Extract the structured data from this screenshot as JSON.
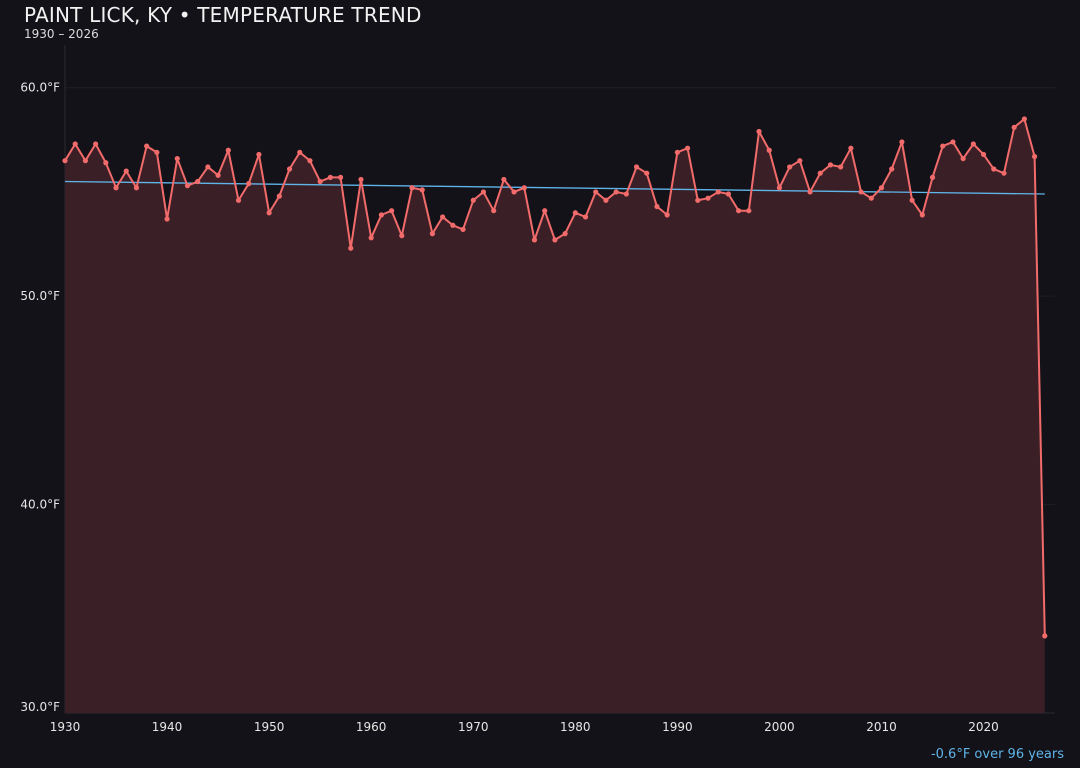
{
  "chart_data": {
    "type": "line",
    "title": "PAINT LICK, KY • TEMPERATURE TREND",
    "subtitle": "1930 – 2026",
    "xlabel": "",
    "ylabel": "",
    "xlim": [
      1930,
      2027
    ],
    "ylim": [
      30,
      62.05
    ],
    "x_ticks": [
      1930,
      1940,
      1950,
      1960,
      1970,
      1980,
      1990,
      2000,
      2010,
      2020
    ],
    "y_ticks": [
      30,
      40,
      50,
      60
    ],
    "y_tick_labels": [
      "30.0°F",
      "40.0°F",
      "50.0°F",
      "60.0°F"
    ],
    "grid": true,
    "colors": {
      "line": "#f26b6b",
      "fill": "#3a2026",
      "trend": "#5fb4e8",
      "background": "#131218"
    },
    "x": [
      1930,
      1931,
      1932,
      1933,
      1934,
      1935,
      1936,
      1937,
      1938,
      1939,
      1940,
      1941,
      1942,
      1943,
      1944,
      1945,
      1946,
      1947,
      1948,
      1949,
      1950,
      1951,
      1952,
      1953,
      1954,
      1955,
      1956,
      1957,
      1958,
      1959,
      1960,
      1961,
      1962,
      1963,
      1964,
      1965,
      1966,
      1967,
      1968,
      1969,
      1970,
      1971,
      1972,
      1973,
      1974,
      1975,
      1976,
      1977,
      1978,
      1979,
      1980,
      1981,
      1982,
      1983,
      1984,
      1985,
      1986,
      1987,
      1988,
      1989,
      1990,
      1991,
      1992,
      1993,
      1994,
      1995,
      1996,
      1997,
      1998,
      1999,
      2000,
      2001,
      2002,
      2003,
      2004,
      2005,
      2006,
      2007,
      2008,
      2009,
      2010,
      2011,
      2012,
      2013,
      2014,
      2015,
      2016,
      2017,
      2018,
      2019,
      2020,
      2021,
      2022,
      2023,
      2024,
      2025,
      2026
    ],
    "values": [
      56.5,
      57.3,
      56.5,
      57.3,
      56.4,
      55.2,
      56.0,
      55.2,
      57.2,
      56.9,
      53.7,
      56.6,
      55.3,
      55.5,
      56.2,
      55.8,
      57.0,
      54.6,
      55.4,
      56.8,
      54.0,
      54.8,
      56.1,
      56.9,
      56.5,
      55.5,
      55.7,
      55.7,
      52.3,
      55.6,
      52.8,
      53.9,
      54.1,
      52.9,
      55.2,
      55.1,
      53.0,
      53.8,
      53.4,
      53.2,
      54.6,
      55.0,
      54.1,
      55.6,
      55.0,
      55.2,
      52.7,
      54.1,
      52.7,
      53.0,
      54.0,
      53.8,
      55.0,
      54.6,
      55.0,
      54.9,
      56.2,
      55.9,
      54.3,
      53.9,
      56.9,
      57.1,
      54.6,
      54.7,
      55.0,
      54.9,
      54.1,
      54.1,
      57.9,
      57.0,
      55.2,
      56.2,
      56.5,
      55.0,
      55.9,
      56.3,
      56.2,
      57.1,
      55.0,
      54.7,
      55.2,
      56.1,
      57.4,
      54.6,
      53.9,
      55.7,
      57.2,
      57.4,
      56.6,
      57.3,
      56.8,
      56.1,
      55.9,
      58.1,
      58.5,
      56.7,
      33.7
    ],
    "trend": {
      "start": [
        1930,
        55.5
      ],
      "end": [
        2026,
        54.9
      ]
    },
    "annotation": "-0.6°F over 96 years"
  }
}
